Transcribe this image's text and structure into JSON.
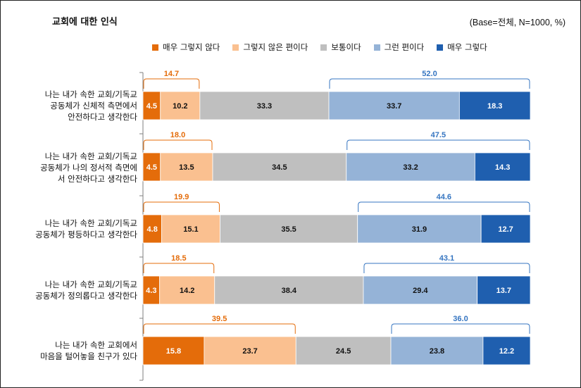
{
  "colors": {
    "strongly_disagree": "#E46C0A",
    "disagree": "#FAC090",
    "neutral": "#BFBFBF",
    "agree": "#95B3D7",
    "strongly_agree": "#1F5FAF",
    "neg_label": "#E46C0A",
    "pos_label": "#3575C1"
  },
  "chart_data": {
    "type": "bar",
    "stacked": true,
    "orientation": "horizontal",
    "title": "교회에 대한 인식",
    "base_note": "(Base=전체, N=1000, %)",
    "legend": [
      "매우 그렇지 않다",
      "그렇지 않은 편이다",
      "보통이다",
      "그런 편이다",
      "매우 그렇다"
    ],
    "categories": [
      "나는 내가 속한 교회/기독교\n공동체가 신체적 측면에서\n안전하다고 생각한다",
      "나는 내가 속한 교회/기독교\n공동체가 나의 정서적 측면에\n서 안전하다고 생각한다",
      "나는 내가 속한 교회/기독교\n공동체가 평등하다고 생각한다",
      "나는 내가 속한 교회/기독교\n공동체가 정의롭다고 생각한다",
      "나는 내가 속한 교회에서\n마음을 털어놓을 친구가 있다"
    ],
    "series": [
      {
        "name": "매우 그렇지 않다",
        "values": [
          4.5,
          4.5,
          4.8,
          4.3,
          15.8
        ]
      },
      {
        "name": "그렇지 않은 편이다",
        "values": [
          10.2,
          13.5,
          15.1,
          14.2,
          23.7
        ]
      },
      {
        "name": "보통이다",
        "values": [
          33.3,
          34.5,
          35.5,
          38.4,
          24.5
        ]
      },
      {
        "name": "그런 편이다",
        "values": [
          33.7,
          33.2,
          31.9,
          29.4,
          23.8
        ]
      },
      {
        "name": "매우 그렇다",
        "values": [
          18.3,
          14.3,
          12.7,
          13.7,
          12.2
        ]
      }
    ],
    "negative_totals": [
      14.7,
      18.0,
      19.9,
      18.5,
      39.5
    ],
    "positive_totals": [
      52.0,
      47.5,
      44.6,
      43.1,
      36.0
    ],
    "xlim": [
      0,
      100
    ]
  }
}
